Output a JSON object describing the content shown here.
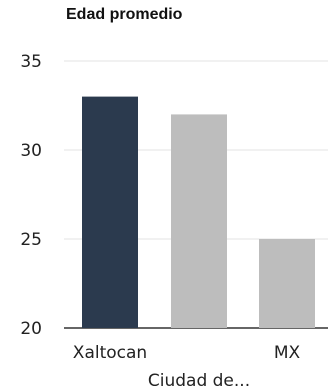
{
  "chart_data": {
    "type": "bar",
    "title": "Edad promedio",
    "categories": [
      "Xaltocan",
      "Ciudad de...",
      "MX"
    ],
    "values": [
      33,
      32,
      25
    ],
    "colors": [
      "#2b3a4e",
      "#bdbdbd",
      "#bdbdbd"
    ],
    "ylim": [
      20,
      35
    ],
    "yticks": [
      20,
      25,
      30,
      35
    ],
    "grid": true,
    "xlabel": "",
    "ylabel": ""
  }
}
